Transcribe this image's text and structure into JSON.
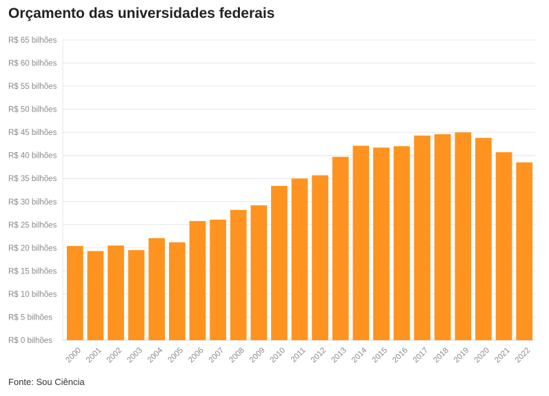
{
  "chart_data": {
    "type": "bar",
    "title": "Orçamento das universidades federais",
    "source": "Fonte: Sou Ciência",
    "bar_color": "#ff9320",
    "grid": true,
    "ylim": [
      0,
      65
    ],
    "ytick_values": [
      0,
      5,
      10,
      15,
      20,
      25,
      30,
      35,
      40,
      45,
      50,
      55,
      60,
      65
    ],
    "ytick_labels": [
      "R$ 0 bilhões",
      "R$ 5 bilhões",
      "R$ 10 bilhões",
      "R$ 15 bilhões",
      "R$ 20 bilhões",
      "R$ 25 bilhões",
      "R$ 30 bilhões",
      "R$ 35 bilhões",
      "R$ 40 bilhões",
      "R$ 45 bilhões",
      "R$ 50 bilhões",
      "R$ 55 bilhões",
      "R$ 60 bilhões",
      "R$ 65 bilhões"
    ],
    "categories": [
      "2000",
      "2001",
      "2002",
      "2003",
      "2004",
      "2005",
      "2006",
      "2007",
      "2008",
      "2009",
      "2010",
      "2011",
      "2012",
      "2013",
      "2014",
      "2015",
      "2016",
      "2017",
      "2018",
      "2019",
      "2020",
      "2021",
      "2022"
    ],
    "values": [
      20.4,
      19.3,
      20.5,
      19.5,
      22.1,
      21.2,
      25.8,
      26.1,
      28.2,
      29.2,
      33.4,
      35.0,
      35.7,
      39.7,
      42.1,
      41.7,
      42.0,
      44.3,
      44.6,
      45.0,
      43.8,
      40.7,
      38.5
    ]
  }
}
